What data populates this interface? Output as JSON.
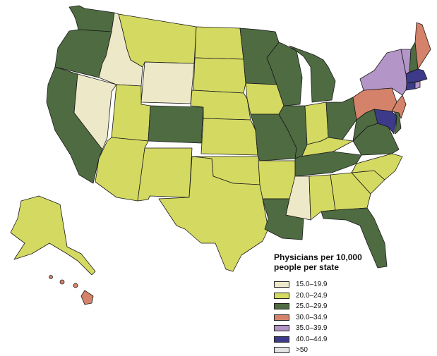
{
  "legend": {
    "title_line1": "Physicians per 10,000",
    "title_line2": "people per state",
    "items": [
      {
        "label": "15.0–19.9",
        "color": "#ede8c8"
      },
      {
        "label": "20.0–24.9",
        "color": "#d4d962"
      },
      {
        "label": "25.0–29.9",
        "color": "#4e6b42"
      },
      {
        "label": "30.0–34.9",
        "color": "#d4836a"
      },
      {
        "label": "35.0–39.9",
        "color": "#b395c7"
      },
      {
        "label": "40.0–44.9",
        "color": "#3d3a8a"
      },
      {
        "label": ">50",
        "color": "#e4e4e4"
      }
    ]
  },
  "states": {
    "WA": "25.0–29.9",
    "OR": "25.0–29.9",
    "CA": "25.0–29.9",
    "ID": "15.0–19.9",
    "NV": "15.0–19.9",
    "WY": "15.0–19.9",
    "MS": "15.0–19.9",
    "MT": "20.0–24.9",
    "UT": "20.0–24.9",
    "AZ": "20.0–24.9",
    "NM": "20.0–24.9",
    "ND": "20.0–24.9",
    "SD": "20.0–24.9",
    "NE": "20.0–24.9",
    "KS": "20.0–24.9",
    "OK": "20.0–24.9",
    "TX": "20.0–24.9",
    "IA": "20.0–24.9",
    "AR": "20.0–24.9",
    "IN": "20.0–24.9",
    "KY": "20.0–24.9",
    "AL": "20.0–24.9",
    "GA": "20.0–24.9",
    "SC": "20.0–24.9",
    "NC": "20.0–24.9",
    "AK": "20.0–24.9",
    "CO": "25.0–29.9",
    "MN": "25.0–29.9",
    "WI": "25.0–29.9",
    "MI": "25.0–29.9",
    "IL": "25.0–29.9",
    "MO": "25.0–29.9",
    "OH": "25.0–29.9",
    "WV": "25.0–29.9",
    "VA": "25.0–29.9",
    "TN": "25.0–29.9",
    "LA": "25.0–29.9",
    "FL": "25.0–29.9",
    "NH": "25.0–29.9",
    "DE": "25.0–29.9",
    "ME": "30.0–34.9",
    "PA": "30.0–34.9",
    "NJ": "30.0–34.9",
    "HI": "30.0–34.9",
    "NY": "35.0–39.9",
    "VT": "35.0–39.9",
    "RI": "35.0–39.9",
    "MA": "40.0–44.9",
    "MD": "40.0–44.9",
    "CT": "40.0–44.9"
  }
}
